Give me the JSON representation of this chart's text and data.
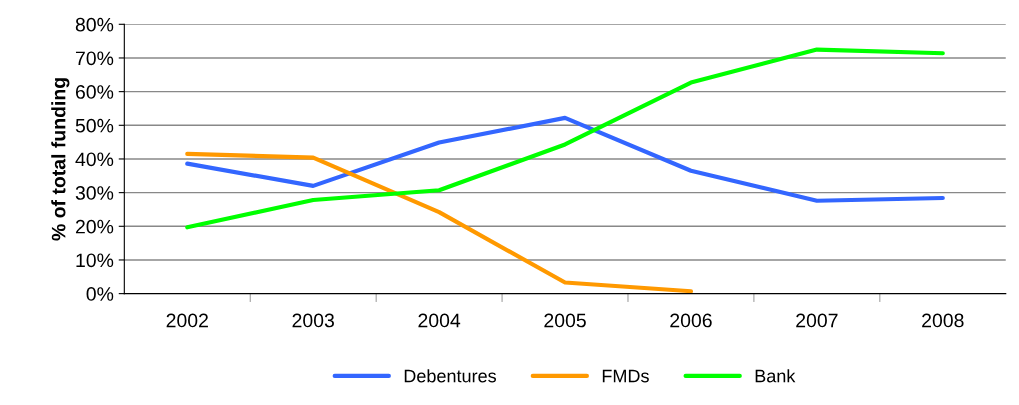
{
  "chart_data": {
    "type": "line",
    "ylabel": "% of total funding",
    "categories": [
      "2002",
      "2003",
      "2004",
      "2005",
      "2006",
      "2007",
      "2008"
    ],
    "series": [
      {
        "name": "Debentures",
        "color": "#3366ff",
        "values": [
          38.6,
          32.0,
          44.9,
          52.2,
          36.5,
          27.6,
          28.4
        ]
      },
      {
        "name": "FMDs",
        "color": "#ff9900",
        "values": [
          41.5,
          40.4,
          24.2,
          3.3,
          0.7,
          null,
          null
        ]
      },
      {
        "name": "Bank",
        "color": "#00ff00",
        "values": [
          19.7,
          27.8,
          30.7,
          44.3,
          62.7,
          72.5,
          71.4
        ]
      }
    ],
    "ylim": [
      0,
      80
    ],
    "yticks": [
      {
        "value": 0,
        "label": "0%"
      },
      {
        "value": 10,
        "label": "10%"
      },
      {
        "value": 20,
        "label": "20%"
      },
      {
        "value": 30,
        "label": "30%"
      },
      {
        "value": 40,
        "label": "40%"
      },
      {
        "value": 50,
        "label": "50%"
      },
      {
        "value": 60,
        "label": "60%"
      },
      {
        "value": 70,
        "label": "70%"
      },
      {
        "value": 80,
        "label": "80%"
      }
    ],
    "grid": "y",
    "legend": "bottom",
    "marker": "none",
    "line_style": "solid"
  }
}
